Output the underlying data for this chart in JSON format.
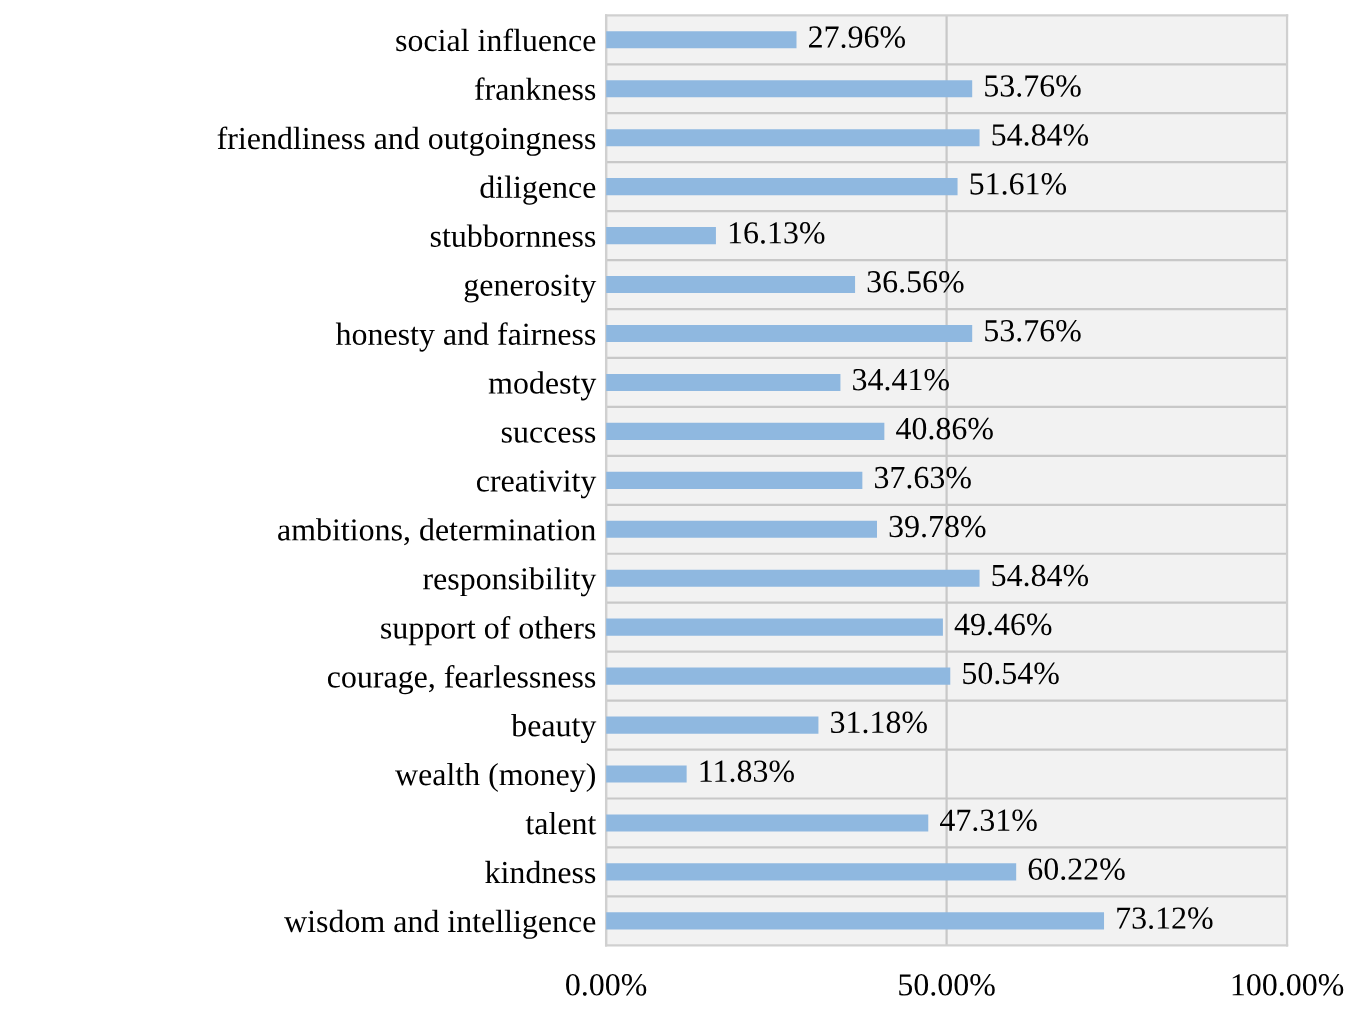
{
  "chart_data": {
    "type": "bar",
    "orientation": "horizontal",
    "categories": [
      "social influence",
      "frankness",
      "friendliness and outgoingness",
      "diligence",
      "stubbornness",
      "generosity",
      "honesty and fairness",
      "modesty",
      "success",
      "creativity",
      "ambitions, determination",
      "responsibility",
      "support of others",
      "courage, fearlessness",
      "beauty",
      "wealth (money)",
      "talent",
      "kindness",
      "wisdom and intelligence"
    ],
    "values": [
      27.96,
      53.76,
      54.84,
      51.61,
      16.13,
      36.56,
      53.76,
      34.41,
      40.86,
      37.63,
      39.78,
      54.84,
      49.46,
      50.54,
      31.18,
      11.83,
      47.31,
      60.22,
      73.12
    ],
    "value_labels": [
      "27.96%",
      "53.76%",
      "54.84%",
      "51.61%",
      "16.13%",
      "36.56%",
      "53.76%",
      "34.41%",
      "40.86%",
      "37.63%",
      "39.78%",
      "54.84%",
      "49.46%",
      "50.54%",
      "31.18%",
      "11.83%",
      "47.31%",
      "60.22%",
      "73.12%"
    ],
    "color": "#8fb8e0",
    "xlim": [
      0,
      100
    ],
    "xticks": [
      {
        "value": 0,
        "label": "0.00%"
      },
      {
        "value": 50,
        "label": "50.00%"
      },
      {
        "value": 100,
        "label": "100.00%"
      }
    ],
    "grid": true
  }
}
